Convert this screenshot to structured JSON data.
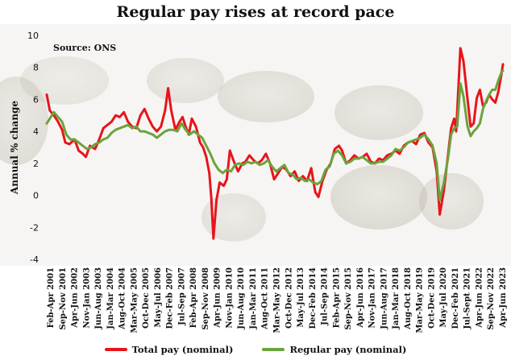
{
  "chart_data": {
    "type": "line",
    "title": "Regular pay rises at record pace",
    "source": "Source: ONS",
    "xlabel": "",
    "ylabel": "Annual % change",
    "ylim": [
      -4,
      10
    ],
    "yticks": [
      -4,
      -2,
      0,
      2,
      4,
      6,
      8,
      10
    ],
    "grid": false,
    "legend": "bottom",
    "x_start_label": "Feb-Apr 2001",
    "x_end_label": "Apr-Jun 2023",
    "tick_labels": [
      "Feb-Apr 2001",
      "Sep-Nov 2001",
      "Apr-Jun 2002",
      "Nov-Jan 2003",
      "Jun-Aug 2003",
      "Jan-Mar 2004",
      "Aug-Oct 2004",
      "Mar-May 2005",
      "Oct-Dec 2005",
      "May-Jul 2006",
      "Dec-Feb 2007",
      "Jul-Sep 2007",
      "Feb-Apr 2008",
      "Sep-Nov 2008",
      "Apr-Jun 2009",
      "Nov-Jan 2010",
      "Jun-Aug 2010",
      "Jan-Mar 2011",
      "Aug-Oct 2011",
      "Mar-May 2012",
      "Oct-Dec 2012",
      "May-Jul 2013",
      "Dec-Feb 2014",
      "Jul-Sep 2014",
      "Feb-Apr 2015",
      "Sep-Nov 2015",
      "Apr-Jun 2016",
      "Nov-Jan 2017",
      "Jun-Aug 2017",
      "Jan-Mar 2018",
      "Aug-Oct 2018",
      "Mar-May 2019",
      "Oct-Dec 2019",
      "May-Jul 2020",
      "Dec-Feb 2021",
      "Jul-Sept 2021",
      "Apr-Jun 2022",
      "Sep-Nov 2022",
      "Apr-Jun 2023"
    ],
    "series": [
      {
        "name": "Total pay (nominal)",
        "color": "#e8141b",
        "values": [
          [
            2001.25,
            6.3
          ],
          [
            2001.4,
            5.3
          ],
          [
            2001.6,
            5.0
          ],
          [
            2001.8,
            4.6
          ],
          [
            2002.0,
            4.1
          ],
          [
            2002.15,
            3.3
          ],
          [
            2002.35,
            3.2
          ],
          [
            2002.6,
            3.5
          ],
          [
            2002.8,
            2.8
          ],
          [
            2003.0,
            2.6
          ],
          [
            2003.15,
            2.4
          ],
          [
            2003.35,
            3.1
          ],
          [
            2003.6,
            2.9
          ],
          [
            2003.8,
            3.5
          ],
          [
            2004.0,
            4.2
          ],
          [
            2004.2,
            4.4
          ],
          [
            2004.4,
            4.6
          ],
          [
            2004.6,
            5.0
          ],
          [
            2004.8,
            4.9
          ],
          [
            2005.0,
            5.2
          ],
          [
            2005.2,
            4.6
          ],
          [
            2005.4,
            4.3
          ],
          [
            2005.6,
            4.2
          ],
          [
            2005.8,
            5.0
          ],
          [
            2006.0,
            5.4
          ],
          [
            2006.2,
            4.8
          ],
          [
            2006.4,
            4.3
          ],
          [
            2006.6,
            4.0
          ],
          [
            2006.8,
            4.3
          ],
          [
            2007.0,
            5.3
          ],
          [
            2007.15,
            6.7
          ],
          [
            2007.3,
            5.3
          ],
          [
            2007.5,
            4.1
          ],
          [
            2007.7,
            4.6
          ],
          [
            2007.85,
            4.9
          ],
          [
            2008.0,
            4.3
          ],
          [
            2008.15,
            3.8
          ],
          [
            2008.3,
            4.8
          ],
          [
            2008.5,
            4.3
          ],
          [
            2008.7,
            3.3
          ],
          [
            2008.85,
            3.0
          ],
          [
            2009.0,
            2.4
          ],
          [
            2009.15,
            1.4
          ],
          [
            2009.25,
            -0.2
          ],
          [
            2009.35,
            -2.7
          ],
          [
            2009.5,
            -0.3
          ],
          [
            2009.65,
            0.8
          ],
          [
            2009.85,
            0.6
          ],
          [
            2010.0,
            1.0
          ],
          [
            2010.15,
            2.8
          ],
          [
            2010.35,
            2.1
          ],
          [
            2010.55,
            1.5
          ],
          [
            2010.75,
            2.0
          ],
          [
            2010.9,
            2.1
          ],
          [
            2011.1,
            2.5
          ],
          [
            2011.3,
            2.2
          ],
          [
            2011.5,
            2.0
          ],
          [
            2011.7,
            2.2
          ],
          [
            2011.9,
            2.6
          ],
          [
            2012.1,
            2.0
          ],
          [
            2012.3,
            1.0
          ],
          [
            2012.5,
            1.4
          ],
          [
            2012.7,
            1.8
          ],
          [
            2012.9,
            1.6
          ],
          [
            2013.1,
            1.2
          ],
          [
            2013.3,
            1.5
          ],
          [
            2013.5,
            0.9
          ],
          [
            2013.7,
            1.2
          ],
          [
            2013.9,
            0.9
          ],
          [
            2014.1,
            1.7
          ],
          [
            2014.3,
            0.2
          ],
          [
            2014.45,
            -0.1
          ],
          [
            2014.65,
            0.9
          ],
          [
            2014.85,
            1.6
          ],
          [
            2015.05,
            2.0
          ],
          [
            2015.25,
            2.9
          ],
          [
            2015.45,
            3.1
          ],
          [
            2015.6,
            2.8
          ],
          [
            2015.8,
            2.0
          ],
          [
            2016.0,
            2.2
          ],
          [
            2016.2,
            2.5
          ],
          [
            2016.4,
            2.3
          ],
          [
            2016.6,
            2.4
          ],
          [
            2016.8,
            2.6
          ],
          [
            2017.0,
            2.1
          ],
          [
            2017.2,
            2.0
          ],
          [
            2017.4,
            2.3
          ],
          [
            2017.6,
            2.2
          ],
          [
            2017.8,
            2.5
          ],
          [
            2018.0,
            2.6
          ],
          [
            2018.2,
            2.8
          ],
          [
            2018.4,
            2.6
          ],
          [
            2018.6,
            3.1
          ],
          [
            2018.8,
            3.3
          ],
          [
            2019.0,
            3.4
          ],
          [
            2019.2,
            3.2
          ],
          [
            2019.4,
            3.8
          ],
          [
            2019.6,
            3.9
          ],
          [
            2019.8,
            3.3
          ],
          [
            2020.0,
            3.0
          ],
          [
            2020.2,
            1.5
          ],
          [
            2020.35,
            -1.2
          ],
          [
            2020.55,
            0.3
          ],
          [
            2020.75,
            2.5
          ],
          [
            2020.9,
            4.2
          ],
          [
            2021.05,
            4.8
          ],
          [
            2021.15,
            4.0
          ],
          [
            2021.35,
            9.2
          ],
          [
            2021.5,
            8.4
          ],
          [
            2021.7,
            6.0
          ],
          [
            2021.85,
            4.3
          ],
          [
            2022.0,
            4.5
          ],
          [
            2022.15,
            6.1
          ],
          [
            2022.3,
            6.6
          ],
          [
            2022.45,
            5.6
          ],
          [
            2022.6,
            5.8
          ],
          [
            2022.75,
            6.3
          ],
          [
            2022.9,
            6.0
          ],
          [
            2023.05,
            5.8
          ],
          [
            2023.2,
            6.5
          ],
          [
            2023.35,
            7.6
          ],
          [
            2023.42,
            8.2
          ]
        ]
      },
      {
        "name": "Regular pay (nominal)",
        "color": "#6aa43c",
        "values": [
          [
            2001.25,
            4.5
          ],
          [
            2001.4,
            4.8
          ],
          [
            2001.6,
            5.2
          ],
          [
            2001.8,
            4.9
          ],
          [
            2002.0,
            4.6
          ],
          [
            2002.2,
            3.8
          ],
          [
            2002.4,
            3.5
          ],
          [
            2002.6,
            3.5
          ],
          [
            2002.8,
            3.3
          ],
          [
            2003.0,
            3.1
          ],
          [
            2003.2,
            2.9
          ],
          [
            2003.4,
            3.0
          ],
          [
            2003.6,
            3.2
          ],
          [
            2003.8,
            3.3
          ],
          [
            2004.0,
            3.5
          ],
          [
            2004.2,
            3.6
          ],
          [
            2004.4,
            3.9
          ],
          [
            2004.6,
            4.1
          ],
          [
            2004.8,
            4.2
          ],
          [
            2005.0,
            4.3
          ],
          [
            2005.2,
            4.4
          ],
          [
            2005.4,
            4.2
          ],
          [
            2005.6,
            4.3
          ],
          [
            2005.8,
            4.0
          ],
          [
            2006.0,
            4.0
          ],
          [
            2006.2,
            3.9
          ],
          [
            2006.4,
            3.8
          ],
          [
            2006.6,
            3.6
          ],
          [
            2006.8,
            3.8
          ],
          [
            2007.0,
            4.0
          ],
          [
            2007.2,
            4.1
          ],
          [
            2007.4,
            4.1
          ],
          [
            2007.6,
            4.0
          ],
          [
            2007.8,
            4.5
          ],
          [
            2008.0,
            4.1
          ],
          [
            2008.2,
            3.8
          ],
          [
            2008.4,
            4.0
          ],
          [
            2008.6,
            3.8
          ],
          [
            2008.8,
            3.6
          ],
          [
            2009.0,
            3.1
          ],
          [
            2009.2,
            2.6
          ],
          [
            2009.4,
            2.0
          ],
          [
            2009.6,
            1.6
          ],
          [
            2009.8,
            1.4
          ],
          [
            2010.0,
            1.6
          ],
          [
            2010.2,
            1.5
          ],
          [
            2010.4,
            1.9
          ],
          [
            2010.6,
            2.0
          ],
          [
            2010.8,
            1.9
          ],
          [
            2011.0,
            2.1
          ],
          [
            2011.2,
            2.0
          ],
          [
            2011.4,
            2.1
          ],
          [
            2011.6,
            1.9
          ],
          [
            2011.8,
            2.0
          ],
          [
            2012.0,
            2.2
          ],
          [
            2012.2,
            1.8
          ],
          [
            2012.4,
            1.5
          ],
          [
            2012.6,
            1.7
          ],
          [
            2012.8,
            1.9
          ],
          [
            2013.0,
            1.4
          ],
          [
            2013.2,
            1.3
          ],
          [
            2013.4,
            1.0
          ],
          [
            2013.6,
            1.1
          ],
          [
            2013.8,
            0.9
          ],
          [
            2014.0,
            1.0
          ],
          [
            2014.2,
            0.8
          ],
          [
            2014.4,
            0.7
          ],
          [
            2014.6,
            0.9
          ],
          [
            2014.8,
            1.6
          ],
          [
            2015.0,
            1.8
          ],
          [
            2015.2,
            2.6
          ],
          [
            2015.4,
            2.8
          ],
          [
            2015.6,
            2.5
          ],
          [
            2015.8,
            2.0
          ],
          [
            2016.0,
            2.1
          ],
          [
            2016.2,
            2.3
          ],
          [
            2016.4,
            2.3
          ],
          [
            2016.6,
            2.4
          ],
          [
            2016.8,
            2.2
          ],
          [
            2017.0,
            2.0
          ],
          [
            2017.2,
            2.0
          ],
          [
            2017.4,
            2.1
          ],
          [
            2017.6,
            2.1
          ],
          [
            2017.8,
            2.3
          ],
          [
            2018.0,
            2.5
          ],
          [
            2018.2,
            2.9
          ],
          [
            2018.4,
            2.8
          ],
          [
            2018.6,
            3.0
          ],
          [
            2018.8,
            3.3
          ],
          [
            2019.0,
            3.4
          ],
          [
            2019.2,
            3.5
          ],
          [
            2019.4,
            3.6
          ],
          [
            2019.6,
            3.8
          ],
          [
            2019.8,
            3.5
          ],
          [
            2020.0,
            3.1
          ],
          [
            2020.2,
            2.0
          ],
          [
            2020.35,
            -0.3
          ],
          [
            2020.55,
            0.8
          ],
          [
            2020.75,
            2.3
          ],
          [
            2020.9,
            3.8
          ],
          [
            2021.05,
            4.2
          ],
          [
            2021.2,
            4.3
          ],
          [
            2021.35,
            7.0
          ],
          [
            2021.5,
            6.2
          ],
          [
            2021.7,
            4.3
          ],
          [
            2021.85,
            3.7
          ],
          [
            2022.0,
            4.0
          ],
          [
            2022.15,
            4.2
          ],
          [
            2022.3,
            4.5
          ],
          [
            2022.45,
            5.4
          ],
          [
            2022.6,
            5.9
          ],
          [
            2022.75,
            6.3
          ],
          [
            2022.9,
            6.6
          ],
          [
            2023.05,
            6.6
          ],
          [
            2023.2,
            7.2
          ],
          [
            2023.35,
            7.7
          ],
          [
            2023.42,
            7.8
          ]
        ]
      }
    ]
  }
}
